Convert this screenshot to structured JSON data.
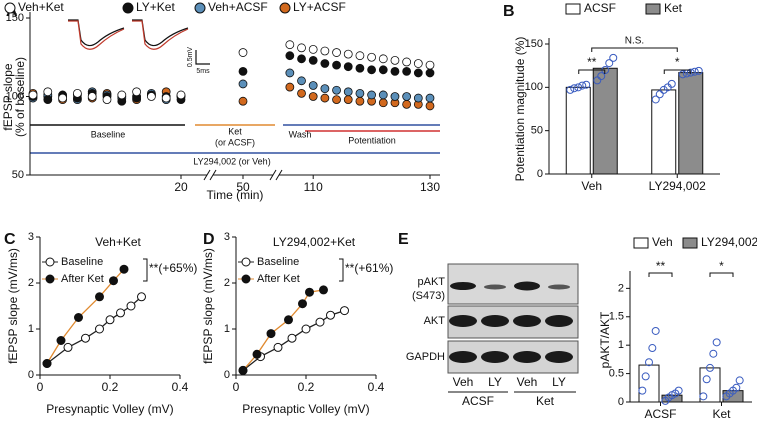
{
  "chart_data": [
    {
      "panel": "A",
      "type": "scatter",
      "ylabel": [
        "fEPSP slope",
        "(% of baseline)"
      ],
      "xlabel": "Time (min)",
      "x": [
        0,
        2,
        4,
        6,
        8,
        10,
        12,
        14,
        16,
        18,
        20,
        50,
        106,
        108,
        110,
        112,
        114,
        116,
        118,
        120,
        122,
        124,
        126,
        128,
        130
      ],
      "series": [
        {
          "name": "Veh+Ket",
          "color": "#ffffff",
          "values": [
            101,
            103,
            99,
            102,
            100,
            98,
            101,
            103,
            100,
            99,
            101,
            128,
            133,
            131,
            130,
            129,
            128,
            127,
            126,
            125,
            124,
            123,
            122,
            121,
            120
          ]
        },
        {
          "name": "LY+Ket",
          "color": "#111111",
          "values": [
            100,
            98,
            101,
            99,
            102,
            100,
            97,
            99,
            101,
            100,
            98,
            116,
            126,
            124,
            123,
            121,
            120,
            119,
            118,
            117,
            117,
            116,
            116,
            115,
            115
          ]
        },
        {
          "name": "Veh+ACSF",
          "color": "#5b8fb9",
          "values": [
            99,
            101,
            100,
            98,
            103,
            101,
            99,
            100,
            102,
            98,
            100,
            108,
            115,
            110,
            107,
            105,
            104,
            103,
            102,
            101,
            101,
            100,
            100,
            99,
            99
          ]
        },
        {
          "name": "LY+ACSF",
          "color": "#d2691e",
          "values": [
            102,
            100,
            98,
            101,
            99,
            102,
            100,
            98,
            101,
            103,
            100,
            97,
            106,
            102,
            100,
            99,
            98,
            98,
            97,
            97,
            96,
            96,
            95,
            95,
            94
          ]
        }
      ],
      "ylim": [
        50,
        150
      ],
      "yticks": [
        50,
        100,
        150
      ],
      "xlim_segments": [
        [
          0,
          20
        ],
        [
          45,
          55
        ],
        [
          105,
          130
        ]
      ],
      "xticks": [
        20,
        50,
        110,
        130
      ],
      "annotations": [
        "Baseline",
        "Ket",
        "(or ACSF)",
        "Wash",
        "Potentiation",
        "LY294,002 (or Veh)",
        "0.5mV",
        "5ms"
      ]
    },
    {
      "panel": "B",
      "type": "bar",
      "ylabel": "Potentiation magnitude (%)",
      "categories": [
        "Veh",
        "LY294,002"
      ],
      "series": [
        {
          "name": "ACSF",
          "color": "#ffffff",
          "values": [
            100,
            97
          ],
          "points": [
            [
              97,
              99,
              100,
              102,
              103
            ],
            [
              86,
              92,
              97,
              100,
              104
            ]
          ]
        },
        {
          "name": "Ket",
          "color": "#8c8c8c",
          "values": [
            122,
            117
          ],
          "points": [
            [
              108,
              113,
              120,
              128,
              134
            ],
            [
              115,
              116,
              117,
              118,
              119
            ]
          ]
        }
      ],
      "ylim": [
        0,
        150
      ],
      "yticks": [
        0,
        50,
        100,
        150
      ],
      "significance": [
        "**",
        "N.S.",
        "*"
      ]
    },
    {
      "panel": "C",
      "type": "line",
      "title": "Veh+Ket",
      "xlabel": "Presynaptic Volley (mV)",
      "ylabel": "fEPSP slope (mV/ms)",
      "series": [
        {
          "name": "Baseline",
          "color": "#ffffff",
          "line_color": "#222222",
          "x": [
            0.02,
            0.08,
            0.13,
            0.17,
            0.2,
            0.23,
            0.26,
            0.29
          ],
          "values": [
            0.25,
            0.6,
            0.8,
            1.0,
            1.2,
            1.35,
            1.5,
            1.7
          ]
        },
        {
          "name": "After Ket",
          "color": "#111111",
          "line_color": "#e08a30",
          "x": [
            0.02,
            0.06,
            0.11,
            0.17,
            0.21,
            0.24
          ],
          "values": [
            0.25,
            0.75,
            1.25,
            1.7,
            2.05,
            2.3
          ]
        }
      ],
      "xlim": [
        0,
        0.4
      ],
      "xticks": [
        0,
        0.2,
        0.4
      ],
      "ylim": [
        0,
        3
      ],
      "yticks": [
        0,
        1,
        2,
        3
      ],
      "annotation": "**(+65%)"
    },
    {
      "panel": "D",
      "type": "line",
      "title": "LY294,002+Ket",
      "xlabel": "Presynaptic Volley (mV)",
      "ylabel": "fEPSP slope (mV/ms)",
      "series": [
        {
          "name": "Baseline",
          "color": "#ffffff",
          "line_color": "#222222",
          "x": [
            0.02,
            0.07,
            0.12,
            0.16,
            0.2,
            0.24,
            0.27,
            0.31
          ],
          "values": [
            0.1,
            0.4,
            0.6,
            0.8,
            1.0,
            1.15,
            1.3,
            1.4
          ]
        },
        {
          "name": "After Ket",
          "color": "#111111",
          "line_color": "#e08a30",
          "x": [
            0.02,
            0.06,
            0.1,
            0.15,
            0.19,
            0.21,
            0.25
          ],
          "values": [
            0.1,
            0.45,
            0.9,
            1.2,
            1.55,
            1.8,
            1.85
          ]
        }
      ],
      "xlim": [
        0,
        0.4
      ],
      "xticks": [
        0,
        0.2,
        0.4
      ],
      "ylim": [
        0,
        3
      ],
      "yticks": [
        0,
        1,
        2,
        3
      ],
      "annotation": "**(+61%)"
    },
    {
      "panel": "E",
      "type": "bar",
      "ylabel": "pAKT/AKT",
      "categories": [
        "ACSF",
        "Ket"
      ],
      "series": [
        {
          "name": "Veh",
          "color": "#ffffff",
          "values": [
            0.65,
            0.6
          ],
          "points": [
            [
              0.2,
              0.45,
              0.7,
              0.95,
              1.25
            ],
            [
              0.1,
              0.4,
              0.6,
              0.85,
              1.05
            ]
          ]
        },
        {
          "name": "LY294,002",
          "color": "#8c8c8c",
          "values": [
            0.12,
            0.2
          ],
          "points": [
            [
              0.02,
              0.08,
              0.12,
              0.15,
              0.2
            ],
            [
              0.1,
              0.15,
              0.2,
              0.25,
              0.38
            ]
          ]
        }
      ],
      "ylim": [
        0,
        2.2
      ],
      "yticks": [
        0,
        0.5,
        1,
        1.5,
        2
      ],
      "significance": [
        "**",
        "*"
      ]
    }
  ],
  "blot": {
    "row_labels": [
      [
        "pAKT",
        "(S473)"
      ],
      [
        "AKT"
      ],
      [
        "GAPDH"
      ]
    ],
    "lanes": [
      "Veh",
      "LY",
      "Veh",
      "LY"
    ],
    "groups": [
      "ACSF",
      "Ket"
    ]
  }
}
